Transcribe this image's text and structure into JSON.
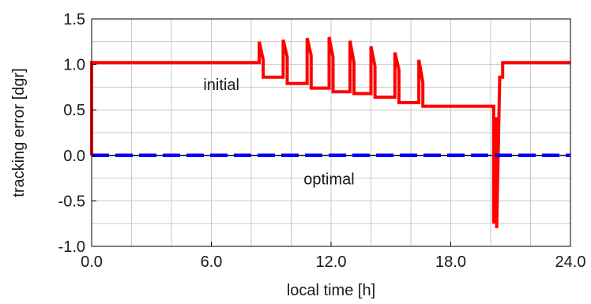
{
  "chart_data": {
    "type": "line",
    "title": "",
    "xlabel": "local time [h]",
    "ylabel": "tracking error [dgr]",
    "xlim": [
      0,
      24
    ],
    "ylim": [
      -1.0,
      1.5
    ],
    "x_ticks": [
      0,
      6,
      12,
      18,
      24
    ],
    "x_tick_labels": [
      "0.0",
      "6.0",
      "12.0",
      "18.0",
      "24.0"
    ],
    "y_ticks": [
      -1.0,
      -0.5,
      0.0,
      0.5,
      1.0,
      1.5
    ],
    "y_tick_labels": [
      "-1.0",
      "-0.5",
      "0.0",
      "0.5",
      "1.0",
      "1.5"
    ],
    "grid": true,
    "annotations": [
      {
        "text": "initial",
        "x": 6.5,
        "y": 0.72
      },
      {
        "text": "optimal",
        "x": 11.9,
        "y": -0.32
      }
    ],
    "series": [
      {
        "color": "#ff0000",
        "style": "solid",
        "x": [
          0.0,
          0.0,
          0.05,
          0.05,
          8.4,
          8.4,
          8.6,
          8.6,
          9.6,
          9.6,
          9.8,
          9.8,
          10.8,
          10.8,
          11.0,
          11.0,
          11.9,
          11.9,
          12.1,
          12.1,
          12.95,
          12.95,
          13.15,
          13.15,
          14.0,
          14.0,
          14.2,
          14.2,
          15.2,
          15.2,
          15.4,
          15.4,
          16.4,
          16.4,
          16.6,
          16.6,
          20.15,
          20.15,
          20.3,
          20.3,
          20.45,
          20.45,
          20.6,
          20.6,
          24.0
        ],
        "y": [
          0.0,
          1.02,
          1.02,
          1.02,
          1.02,
          1.25,
          1.05,
          0.86,
          0.86,
          1.27,
          1.08,
          0.79,
          0.79,
          1.29,
          1.1,
          0.74,
          0.74,
          1.3,
          1.08,
          0.7,
          0.7,
          1.26,
          1.02,
          0.68,
          0.68,
          1.2,
          0.98,
          0.64,
          0.64,
          1.13,
          0.94,
          0.58,
          0.58,
          1.05,
          0.8,
          0.54,
          0.54,
          -0.75,
          0.42,
          -0.8,
          0.82,
          0.86,
          0.86,
          1.02,
          1.02
        ]
      },
      {
        "color": "#0000ff",
        "style": "dashed",
        "x": [
          0.0,
          24.0
        ],
        "y": [
          0.0,
          0.0
        ]
      }
    ]
  }
}
